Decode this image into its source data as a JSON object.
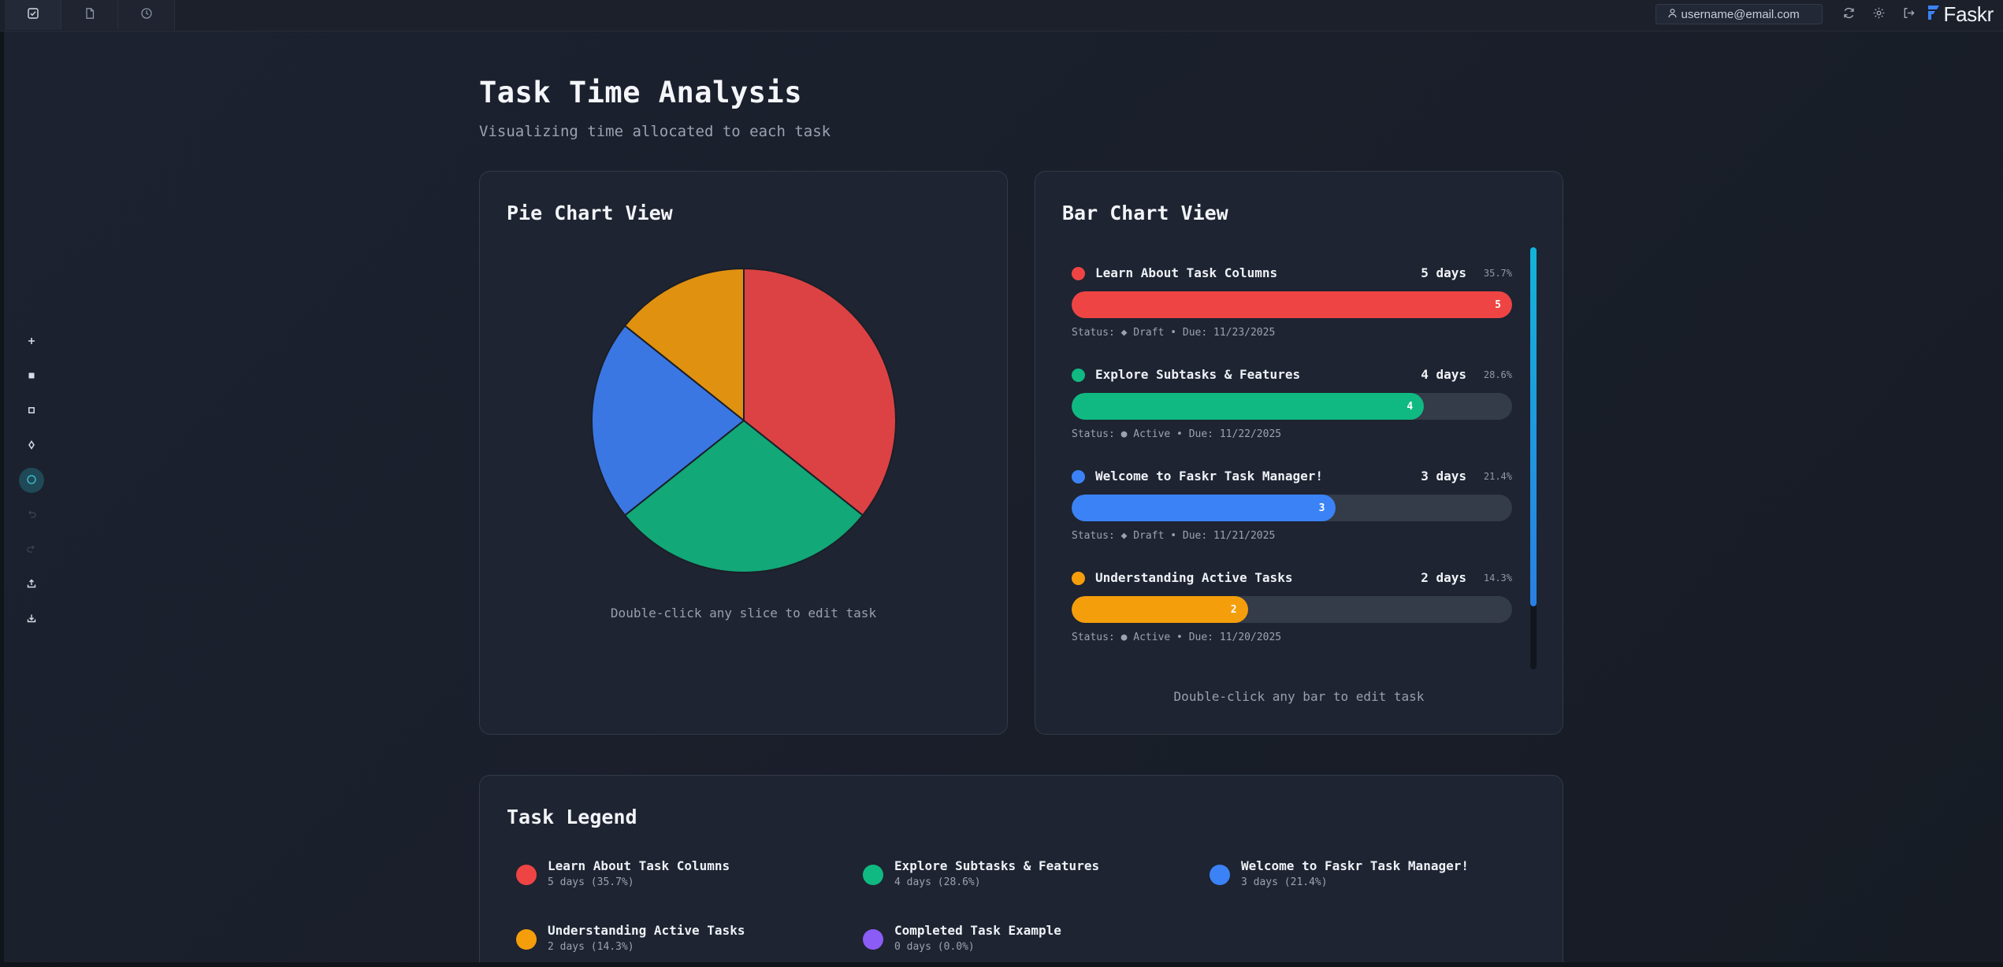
{
  "topbar": {
    "tabs": [
      {
        "icon": "checkbox-icon",
        "active": true
      },
      {
        "icon": "document-icon",
        "active": false
      },
      {
        "icon": "clock-icon",
        "active": false
      }
    ],
    "user_email": "username@email.com",
    "brand_name": "Faskr"
  },
  "tools": [
    {
      "icon": "plus-icon"
    },
    {
      "icon": "filled-square-icon"
    },
    {
      "icon": "outline-square-icon"
    },
    {
      "icon": "diamond-icon"
    },
    {
      "icon": "circle-icon",
      "active": true
    },
    {
      "icon": "undo-icon",
      "disabled": true
    },
    {
      "icon": "redo-icon",
      "disabled": true
    },
    {
      "icon": "upload-icon"
    },
    {
      "icon": "download-icon"
    }
  ],
  "page": {
    "title": "Task Time Analysis",
    "subtitle": "Visualizing time allocated to each task"
  },
  "pie_card": {
    "title": "Pie Chart View",
    "hint": "Double-click any slice to edit task"
  },
  "bar_card": {
    "title": "Bar Chart View",
    "hint": "Double-click any bar to edit task",
    "scroll_position": 0.0
  },
  "legend_card": {
    "title": "Task Legend"
  },
  "tasks": [
    {
      "name": "Learn About Task Columns",
      "days": 5,
      "days_label": "5 days",
      "pct_label": "35.7%",
      "legend_sub": "5 days (35.7%)",
      "color": "#ef4444",
      "pie_color": "#dc4243",
      "status": "Status: ◆ Draft • Due: 11/23/2025"
    },
    {
      "name": "Explore Subtasks & Features",
      "days": 4,
      "days_label": "4 days",
      "pct_label": "28.6%",
      "legend_sub": "4 days (28.6%)",
      "color": "#10b981",
      "pie_color": "#12a877",
      "status": "Status: ● Active • Due: 11/22/2025"
    },
    {
      "name": "Welcome to Faskr Task Manager!",
      "days": 3,
      "days_label": "3 days",
      "pct_label": "21.4%",
      "legend_sub": "3 days (21.4%)",
      "color": "#3b82f6",
      "pie_color": "#3b77e3",
      "status": "Status: ◆ Draft • Due: 11/21/2025"
    },
    {
      "name": "Understanding Active Tasks",
      "days": 2,
      "days_label": "2 days",
      "pct_label": "14.3%",
      "legend_sub": "2 days (14.3%)",
      "color": "#f59e0b",
      "pie_color": "#e09110",
      "status": "Status: ● Active • Due: 11/20/2025"
    },
    {
      "name": "Completed Task Example",
      "days": 0,
      "days_label": "0 days",
      "pct_label": "0.0%",
      "legend_sub": "0 days (0.0%)",
      "color": "#8b5cf6",
      "pie_color": "#8b5cf6",
      "status": ""
    }
  ],
  "chart_data": [
    {
      "type": "pie",
      "title": "Pie Chart View",
      "categories": [
        "Learn About Task Columns",
        "Explore Subtasks & Features",
        "Welcome to Faskr Task Manager!",
        "Understanding Active Tasks",
        "Completed Task Example"
      ],
      "values": [
        5,
        4,
        3,
        2,
        0
      ],
      "unit": "days"
    },
    {
      "type": "bar",
      "orientation": "horizontal",
      "title": "Bar Chart View",
      "categories": [
        "Learn About Task Columns",
        "Explore Subtasks & Features",
        "Welcome to Faskr Task Manager!",
        "Understanding Active Tasks",
        "Completed Task Example"
      ],
      "values": [
        5,
        4,
        3,
        2,
        0
      ],
      "percent_labels": [
        "35.7%",
        "28.6%",
        "21.4%",
        "14.3%",
        "0.0%"
      ],
      "max": 5,
      "unit": "days"
    }
  ]
}
